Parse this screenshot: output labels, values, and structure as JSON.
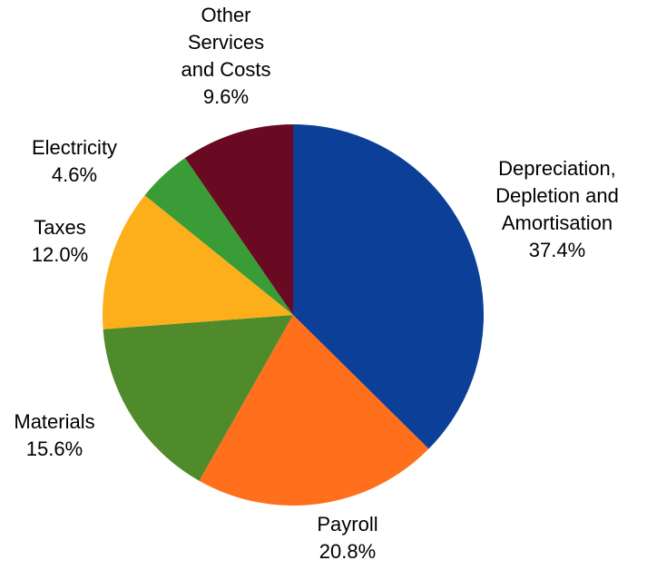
{
  "chart_data": {
    "type": "pie",
    "title": "",
    "start_angle_deg": 0,
    "direction": "clockwise",
    "slices": [
      {
        "label_lines": [
          "Depreciation,",
          "Depletion and",
          "Amortisation"
        ],
        "value": 37.4,
        "value_label": "37.4%",
        "color": "#0C3F98"
      },
      {
        "label_lines": [
          "Payroll"
        ],
        "value": 20.8,
        "value_label": "20.8%",
        "color": "#FF6F1C"
      },
      {
        "label_lines": [
          "Materials"
        ],
        "value": 15.6,
        "value_label": "15.6%",
        "color": "#4F8B2A"
      },
      {
        "label_lines": [
          "Taxes"
        ],
        "value": 12.0,
        "value_label": "12.0%",
        "color": "#FDAE1B"
      },
      {
        "label_lines": [
          "Electricity"
        ],
        "value": 4.6,
        "value_label": "4.6%",
        "color": "#3A9C37"
      },
      {
        "label_lines": [
          "Other",
          "Services",
          "and Costs"
        ],
        "value": 9.6,
        "value_label": "9.6%",
        "color": "#6A0A22"
      }
    ]
  }
}
